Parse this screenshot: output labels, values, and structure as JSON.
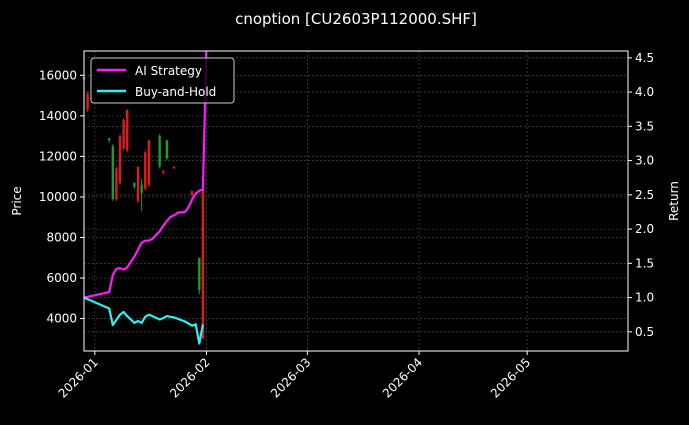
{
  "chart_data": {
    "type": "line",
    "title": "cnoption [CU2603P112000.SHF]",
    "xlabel": "",
    "ylabel": "Price",
    "ylabel_right": "Return",
    "ylim": [
      2400,
      17200
    ],
    "ylim_right": [
      0.22,
      4.6
    ],
    "xlim": [
      "2025-12-29",
      "2026-05-29"
    ],
    "x_ticks": [
      "2026-01",
      "2026-02",
      "2026-03",
      "2026-04",
      "2026-05"
    ],
    "y_ticks": [
      4000,
      6000,
      8000,
      10000,
      12000,
      14000,
      16000
    ],
    "y_ticks_right": [
      0.5,
      1.0,
      1.5,
      2.0,
      2.5,
      3.0,
      3.5,
      4.0,
      4.5
    ],
    "grid": true,
    "legend_position": "upper left",
    "background": "#000000",
    "colors": {
      "ai_strategy": "#ff1aff",
      "buy_and_hold": "#33f0f0",
      "candle_up": "#1f9e1f",
      "candle_down": "#e01b1b",
      "grid": "#555555",
      "axes": "#ffffff"
    },
    "series": [
      {
        "name": "AI Strategy",
        "axis": "right",
        "color": "#ff1aff",
        "points": [
          [
            "2025-12-29",
            1.0
          ],
          [
            "2026-01-05",
            1.08
          ],
          [
            "2026-01-06",
            1.33
          ],
          [
            "2026-01-07",
            1.42
          ],
          [
            "2026-01-08",
            1.43
          ],
          [
            "2026-01-09",
            1.41
          ],
          [
            "2026-01-10",
            1.44
          ],
          [
            "2026-01-12",
            1.6
          ],
          [
            "2026-01-13",
            1.7
          ],
          [
            "2026-01-14",
            1.8
          ],
          [
            "2026-01-15",
            1.83
          ],
          [
            "2026-01-16",
            1.83
          ],
          [
            "2026-01-17",
            1.86
          ],
          [
            "2026-01-19",
            1.97
          ],
          [
            "2026-01-20",
            2.05
          ],
          [
            "2026-01-21",
            2.12
          ],
          [
            "2026-01-22",
            2.18
          ],
          [
            "2026-01-23",
            2.2
          ],
          [
            "2026-01-24",
            2.24
          ],
          [
            "2026-01-26",
            2.25
          ],
          [
            "2026-01-27",
            2.32
          ],
          [
            "2026-01-28",
            2.43
          ],
          [
            "2026-01-29",
            2.52
          ],
          [
            "2026-01-30",
            2.56
          ],
          [
            "2026-01-31",
            2.58
          ],
          [
            "2026-02-01",
            4.7
          ]
        ]
      },
      {
        "name": "Buy-and-Hold",
        "axis": "right",
        "color": "#33f0f0",
        "points": [
          [
            "2025-12-29",
            1.0
          ],
          [
            "2026-01-05",
            0.84
          ],
          [
            "2026-01-06",
            0.6
          ],
          [
            "2026-01-08",
            0.75
          ],
          [
            "2026-01-09",
            0.79
          ],
          [
            "2026-01-10",
            0.73
          ],
          [
            "2026-01-12",
            0.63
          ],
          [
            "2026-01-13",
            0.66
          ],
          [
            "2026-01-14",
            0.63
          ],
          [
            "2026-01-15",
            0.72
          ],
          [
            "2026-01-16",
            0.75
          ],
          [
            "2026-01-17",
            0.73
          ],
          [
            "2026-01-19",
            0.68
          ],
          [
            "2026-01-20",
            0.7
          ],
          [
            "2026-01-21",
            0.73
          ],
          [
            "2026-01-22",
            0.72
          ],
          [
            "2026-01-23",
            0.71
          ],
          [
            "2026-01-26",
            0.65
          ],
          [
            "2026-01-28",
            0.59
          ],
          [
            "2026-01-29",
            0.61
          ],
          [
            "2026-01-30",
            0.33
          ],
          [
            "2026-01-31",
            0.61
          ]
        ]
      }
    ],
    "candles": [
      {
        "date": "2025-12-29",
        "open": 15800,
        "close": 15900,
        "high": 16000,
        "low": 15700,
        "dir": "up"
      },
      {
        "date": "2025-12-30",
        "open": 15100,
        "close": 14300,
        "high": 15200,
        "low": 14200,
        "dir": "down"
      },
      {
        "date": "2026-01-05",
        "open": 12800,
        "close": 12900,
        "high": 12900,
        "low": 12700,
        "dir": "up"
      },
      {
        "date": "2026-01-06",
        "open": 9900,
        "close": 12500,
        "high": 12600,
        "low": 9800,
        "dir": "up"
      },
      {
        "date": "2026-01-07",
        "open": 11400,
        "close": 9900,
        "high": 11500,
        "low": 9800,
        "dir": "down"
      },
      {
        "date": "2026-01-08",
        "open": 13000,
        "close": 10700,
        "high": 13100,
        "low": 10600,
        "dir": "down"
      },
      {
        "date": "2026-01-09",
        "open": 13800,
        "close": 12400,
        "high": 13900,
        "low": 12300,
        "dir": "down"
      },
      {
        "date": "2026-01-10",
        "open": 14300,
        "close": 12300,
        "high": 14300,
        "low": 12200,
        "dir": "down"
      },
      {
        "date": "2026-01-12",
        "open": 10500,
        "close": 10700,
        "high": 10700,
        "low": 10400,
        "dir": "up"
      },
      {
        "date": "2026-01-13",
        "open": 11500,
        "close": 9800,
        "high": 11500,
        "low": 9700,
        "dir": "down"
      },
      {
        "date": "2026-01-14",
        "open": 10200,
        "close": 10600,
        "high": 10900,
        "low": 9300,
        "dir": "up"
      },
      {
        "date": "2026-01-15",
        "open": 12200,
        "close": 10400,
        "high": 12300,
        "low": 10300,
        "dir": "down"
      },
      {
        "date": "2026-01-16",
        "open": 12800,
        "close": 10600,
        "high": 12800,
        "low": 10500,
        "dir": "down"
      },
      {
        "date": "2026-01-19",
        "open": 11500,
        "close": 13000,
        "high": 13100,
        "low": 11400,
        "dir": "up"
      },
      {
        "date": "2026-01-20",
        "open": 11300,
        "close": 11200,
        "high": 11300,
        "low": 11100,
        "dir": "down"
      },
      {
        "date": "2026-01-21",
        "open": 11900,
        "close": 12800,
        "high": 12800,
        "low": 11800,
        "dir": "up"
      },
      {
        "date": "2026-01-23",
        "open": 11500,
        "close": 11400,
        "high": 11500,
        "low": 11400,
        "dir": "down"
      },
      {
        "date": "2026-01-28",
        "open": 10300,
        "close": 10100,
        "high": 10300,
        "low": 10000,
        "dir": "down"
      },
      {
        "date": "2026-01-30",
        "open": 5400,
        "close": 7000,
        "high": 7000,
        "low": 5200,
        "dir": "up"
      },
      {
        "date": "2026-01-31",
        "open": 10400,
        "close": 3000,
        "high": 10400,
        "low": 3000,
        "dir": "down"
      }
    ]
  },
  "legend": {
    "items": [
      {
        "label": "AI Strategy",
        "color": "#ff1aff"
      },
      {
        "label": "Buy-and-Hold",
        "color": "#33f0f0"
      }
    ]
  }
}
